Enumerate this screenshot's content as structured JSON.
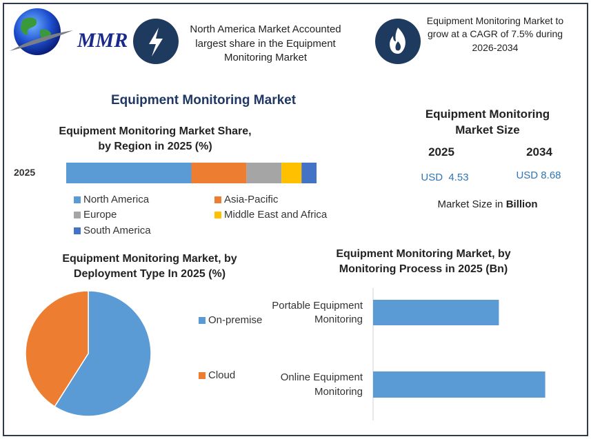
{
  "header": {
    "logo": "MMR",
    "note_left": "North America Market Accounted largest share in the Equipment Monitoring Market",
    "note_right": "Equipment Monitoring Market to grow at a CAGR of 7.5% during 2026-2034"
  },
  "title": "Equipment Monitoring Market",
  "market_size": {
    "title": "Equipment Monitoring Market Size",
    "years": [
      "2025",
      "2034"
    ],
    "values": [
      "USD  4.53",
      "USD 8.68"
    ],
    "note": "Market Size in",
    "unit": "Billion"
  },
  "chart_data": [
    {
      "type": "bar",
      "orientation": "horizontal",
      "stacked": true,
      "title": "Equipment Monitoring Market Share, by Region in 2025 (%)",
      "categories": [
        "2025"
      ],
      "xlim": [
        0,
        100
      ],
      "series": [
        {
          "name": "North America",
          "color": "#5b9bd5",
          "values": [
            50
          ]
        },
        {
          "name": "Asia-Pacific",
          "color": "#ed7d31",
          "values": [
            22
          ]
        },
        {
          "name": "Europe",
          "color": "#a5a5a5",
          "values": [
            14
          ]
        },
        {
          "name": "Middle East and Africa",
          "color": "#ffc000",
          "values": [
            8
          ]
        },
        {
          "name": "South America",
          "color": "#4472c4",
          "values": [
            6
          ]
        }
      ]
    },
    {
      "type": "pie",
      "title": "Equipment Monitoring Market, by Deployment Type In 2025 (%)",
      "categories": [
        "On-premise",
        "Cloud"
      ],
      "values": [
        59,
        41
      ],
      "colors": [
        "#5b9bd5",
        "#ed7d31"
      ]
    },
    {
      "type": "bar",
      "orientation": "horizontal",
      "stacked": false,
      "title": "Equipment Monitoring Market, by Monitoring Process in 2025 (Bn)",
      "categories": [
        "Portable Equipment Monitoring",
        "Online Equipment Monitoring"
      ],
      "values": [
        1.9,
        2.6
      ],
      "color": "#5b9bd5",
      "xlim": [
        0,
        3
      ]
    }
  ]
}
